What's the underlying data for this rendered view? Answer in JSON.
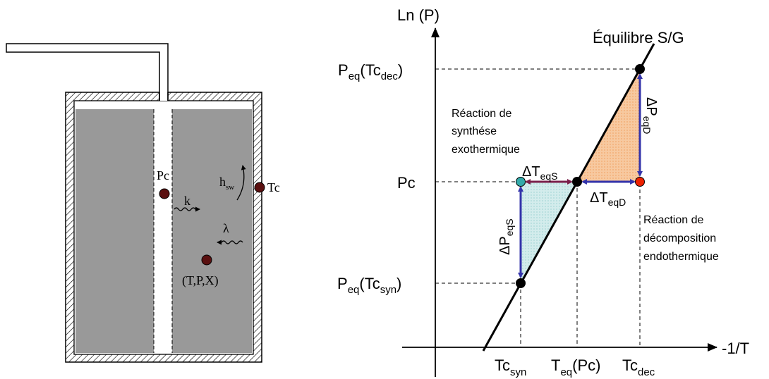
{
  "reactor": {
    "label_pc": "Pc",
    "label_tc": "Tc",
    "label_hsw_main": "h",
    "label_hsw_sub": "sw",
    "label_k": "k",
    "label_lambda": "λ",
    "label_state": "(T,P,X)"
  },
  "plot": {
    "y_axis_label": "Ln (P)",
    "x_axis_label": "-1/T",
    "curve_label": "Équilibre S/G",
    "y_ticks": {
      "peq_dec_main": "P",
      "peq_dec_sub": "eq",
      "peq_dec_mid": "(Tc",
      "peq_dec_sub2": "dec",
      "peq_dec_end": ")",
      "pc": "Pc",
      "peq_syn_main": "P",
      "peq_syn_sub": "eq",
      "peq_syn_mid": "(Tc",
      "peq_syn_sub2": "syn",
      "peq_syn_end": ")"
    },
    "x_ticks": {
      "tc_syn_main": "Tc",
      "tc_syn_sub": "syn",
      "teq_main": "T",
      "teq_sub": "eq",
      "teq_end": "(Pc)",
      "tc_dec_main": "Tc",
      "tc_dec_sub": "dec"
    },
    "synthesis_text": [
      "Réaction de",
      "synthése",
      "exothermique"
    ],
    "decomposition_text": [
      "Réaction de",
      "décomposition",
      "endothermique"
    ],
    "delta_teqs": {
      "main": "ΔT",
      "sub": "eqS"
    },
    "delta_teqd": {
      "main": "ΔT",
      "sub": "eqD"
    },
    "delta_peqs": {
      "main": "ΔP",
      "sub": "eqS"
    },
    "delta_peqd": {
      "main": "ΔP",
      "sub": "eqD"
    }
  },
  "colors": {
    "arrow_blue": "#3333aa",
    "arrow_purple": "#7a1f4a",
    "fill_orange": "#f7c18e",
    "fill_teal": "#c6e6e6",
    "point_red": "#ee2200",
    "point_teal": "#33aaaa",
    "reactor_gray": "#999999",
    "point_brown": "#5a1010"
  }
}
